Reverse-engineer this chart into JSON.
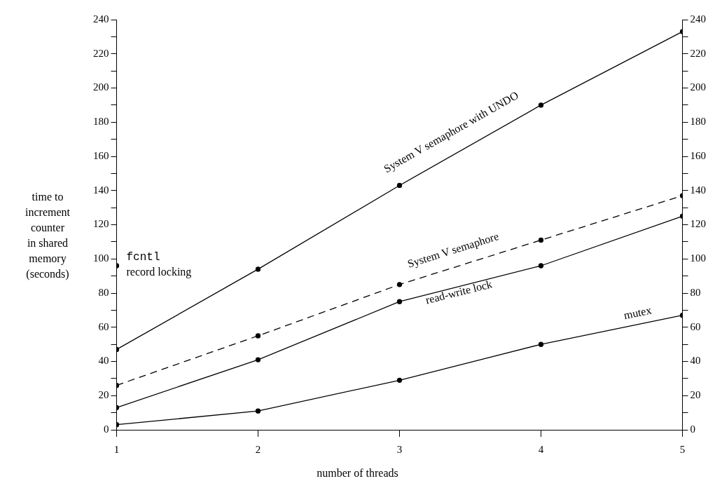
{
  "chart_data": {
    "type": "line",
    "xlabel": "number of threads",
    "ylabel": "time to\nincrement\ncounter\nin shared\nmemory\n(seconds)",
    "x": [
      1,
      2,
      3,
      4,
      5
    ],
    "xlim": [
      1,
      5
    ],
    "xticks": [
      1,
      2,
      3,
      4,
      5
    ],
    "ylim": [
      0,
      240
    ],
    "yticks": [
      0,
      {
        "value": 10,
        "label": null
      },
      20,
      {
        "value": 30,
        "label": null
      },
      40,
      {
        "value": 50,
        "label": null
      },
      60,
      {
        "value": 70,
        "label": null
      },
      80,
      {
        "value": 90,
        "label": null
      },
      100,
      {
        "value": 110,
        "label": null
      },
      120,
      {
        "value": 130,
        "label": null
      },
      140,
      {
        "value": 150,
        "label": null
      },
      160,
      {
        "value": 170,
        "label": null
      },
      180,
      {
        "value": 190,
        "label": null
      },
      200,
      {
        "value": 210,
        "label": null
      },
      220,
      {
        "value": 230,
        "label": null
      },
      240
    ],
    "y2lim": [
      0,
      240
    ],
    "y2ticks": [
      0,
      {
        "value": 10,
        "label": null
      },
      20,
      {
        "value": 30,
        "label": null
      },
      40,
      {
        "value": 50,
        "label": null
      },
      60,
      {
        "value": 70,
        "label": null
      },
      80,
      {
        "value": 90,
        "label": null
      },
      100,
      {
        "value": 110,
        "label": null
      },
      120,
      {
        "value": 130,
        "label": null
      },
      140,
      {
        "value": 150,
        "label": null
      },
      160,
      {
        "value": 170,
        "label": null
      },
      180,
      {
        "value": 190,
        "label": null
      },
      200,
      {
        "value": 210,
        "label": null
      },
      220,
      {
        "value": 230,
        "label": null
      },
      240
    ],
    "grid": false,
    "legend": false,
    "marker": "circle",
    "annotations": [
      {
        "text": "fcntl record locking",
        "x": 1,
        "y": 96
      }
    ],
    "series": [
      {
        "color": "#000000",
        "values": [
          96,
          null,
          null,
          null,
          null
        ]
      },
      {
        "name": "System V semaphore with UNDO",
        "color": "#000000",
        "values": [
          47,
          94,
          143,
          190,
          233
        ]
      },
      {
        "name": "System V semaphore",
        "color": "#000000",
        "values": [
          26,
          55,
          85,
          111,
          137
        ],
        "line_style": "dashed"
      },
      {
        "name": "read-write lock",
        "color": "#000000",
        "values": [
          13,
          41,
          75,
          96,
          125
        ]
      },
      {
        "name": "mutex",
        "color": "#000000",
        "values": [
          3,
          11,
          29,
          50,
          67
        ]
      }
    ]
  }
}
